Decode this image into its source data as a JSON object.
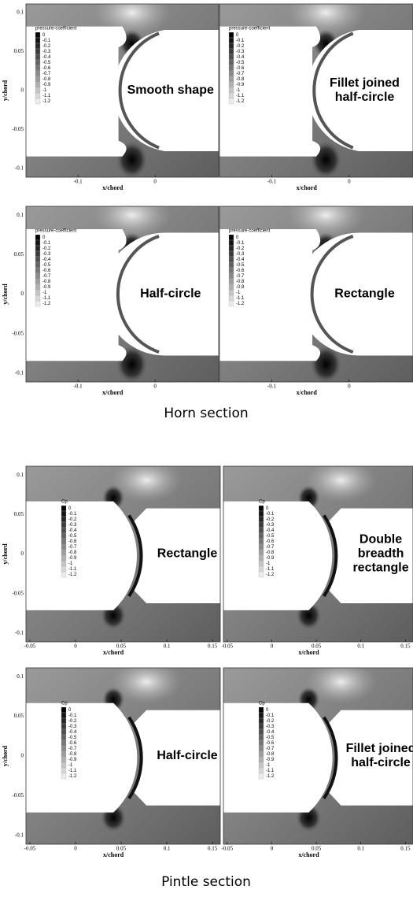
{
  "groups": [
    {
      "caption": "Horn section",
      "kind": "horn",
      "x_label": "x/chord",
      "y_label": "y/chord",
      "x_ticks": [
        -0.1,
        0
      ],
      "y_ticks": [
        0.1,
        0.05,
        0,
        -0.05,
        -0.1
      ],
      "legend_title": "pressure-coefficient",
      "legend_levels": [
        0,
        -0.1,
        -0.2,
        -0.3,
        -0.4,
        -0.5,
        -0.6,
        -0.7,
        -0.8,
        -0.9,
        -1,
        -1.1,
        -1.2
      ],
      "panels": [
        {
          "label": [
            "Smooth shape"
          ]
        },
        {
          "label": [
            "Fillet joined",
            "half-circle"
          ]
        },
        {
          "label": [
            "Half-circle"
          ]
        },
        {
          "label": [
            "Rectangle"
          ]
        }
      ]
    },
    {
      "caption": "Pintle section",
      "kind": "pintle",
      "x_label": "x/chord",
      "y_label": "y/chord",
      "x_ticks": [
        -0.05,
        0,
        0.05,
        0.1,
        0.15
      ],
      "y_ticks": [
        0.1,
        0.05,
        0,
        -0.05,
        -0.1
      ],
      "legend_title": "Cp",
      "legend_levels": [
        0,
        -0.1,
        -0.2,
        -0.3,
        -0.4,
        -0.5,
        -0.6,
        -0.7,
        -0.8,
        -0.9,
        -1,
        -1.1,
        -1.2
      ],
      "panels": [
        {
          "label": [
            "Rectangle"
          ]
        },
        {
          "label": [
            "Double",
            "breadth",
            "rectangle"
          ]
        },
        {
          "label": [
            "Half-circle"
          ]
        },
        {
          "label": [
            "Fillet joined",
            "half-circle"
          ]
        }
      ]
    }
  ]
}
